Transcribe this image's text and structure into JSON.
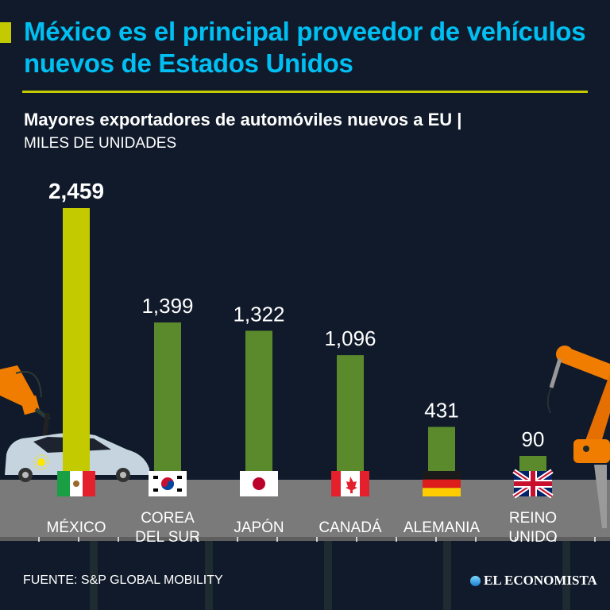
{
  "header": {
    "title": "México es el principal proveedor de vehículos nuevos de Estados Unidos",
    "subtitle": "Mayores exportadores de automóviles nuevos a EU |",
    "unit": "MILES DE UNIDADES"
  },
  "colors": {
    "background": "#101a2a",
    "title": "#00bff3",
    "accent": "#c3cb00",
    "highlight_bar": "#c3cb00",
    "bar": "#5b8a2c",
    "floor": "#7a7a7a"
  },
  "chart_data": {
    "type": "bar",
    "title": "Mayores exportadores de automóviles nuevos a EU",
    "ylabel": "MILES DE UNIDADES",
    "ylim": [
      0,
      2459
    ],
    "categories": [
      "MÉXICO",
      "COREA DEL SUR",
      "JAPÓN",
      "CANADÁ",
      "ALEMANIA",
      "REINO UNIDO"
    ],
    "category_lines": [
      [
        "MÉXICO"
      ],
      [
        "COREA",
        "DEL SUR"
      ],
      [
        "JAPÓN"
      ],
      [
        "CANADÁ"
      ],
      [
        "ALEMANIA"
      ],
      [
        "REINO",
        "UNIDO"
      ]
    ],
    "values": [
      2459,
      1399,
      1322,
      1096,
      431,
      90
    ],
    "labels": [
      "2,459",
      "1,399",
      "1,322",
      "1,096",
      "431",
      "90"
    ],
    "flags": [
      "mexico-flag",
      "south-korea-flag",
      "japan-flag",
      "canada-flag",
      "germany-flag",
      "uk-flag"
    ],
    "highlight_index": 0
  },
  "footer": {
    "source": "FUENTE: S&P GLOBAL MOBILITY",
    "logo": "EL ECONOMISTA"
  }
}
